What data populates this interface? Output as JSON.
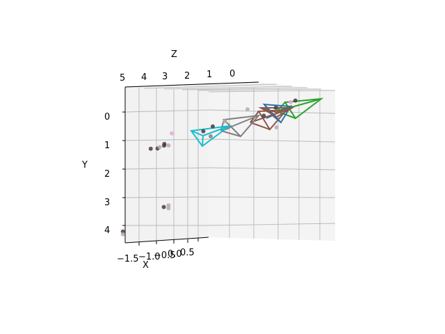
{
  "chart_data": {
    "type": "scatter",
    "projection": "3d",
    "title": "",
    "xlabel": "X",
    "ylabel": "Y",
    "zlabel": "Z",
    "grid": true,
    "axes": {
      "x": {
        "ticks": [
          "−1.5",
          "−1.0",
          "−0.5",
          "0.0",
          "0.5"
        ]
      },
      "y": {
        "ticks": [
          "0",
          "1",
          "2",
          "3",
          "4"
        ]
      },
      "z": {
        "ticks": [
          "5",
          "4",
          "3",
          "2",
          "1",
          "0"
        ]
      }
    },
    "colors": {
      "pane": "#f2f2f2",
      "grid": "#b0b0b0",
      "points_dark": "#4a3b3f",
      "points_pink": "#e7a9d6",
      "points_grey": "#b7a9b0",
      "camera_blue": "#1f77b4",
      "camera_green": "#2ca02c",
      "camera_brown": "#8c564b",
      "camera_grey": "#7f7f7f",
      "camera_cyan": "#17becf"
    },
    "cameras": [
      {
        "name": "camera-green",
        "color": "#2ca02c"
      },
      {
        "name": "camera-blue",
        "color": "#1f77b4"
      },
      {
        "name": "camera-brown-1",
        "color": "#8c564b"
      },
      {
        "name": "camera-brown-2",
        "color": "#8c564b"
      },
      {
        "name": "camera-grey",
        "color": "#7f7f7f"
      },
      {
        "name": "camera-cyan",
        "color": "#17becf"
      }
    ],
    "points": [
      {
        "x": -1.3,
        "y": 4.1,
        "z": 4.9,
        "color": "#4a3b3f"
      },
      {
        "x": -1.3,
        "y": 4.2,
        "z": 4.9,
        "color": "#b7a9b0"
      },
      {
        "x": -0.1,
        "y": 3.3,
        "z": 4.3,
        "color": "#4a3b3f"
      },
      {
        "x": 0.0,
        "y": 3.25,
        "z": 4.2,
        "color": "#b7a9b0"
      },
      {
        "x": 0.0,
        "y": 3.35,
        "z": 4.2,
        "color": "#b7a9b0"
      },
      {
        "x": -0.6,
        "y": 1.25,
        "z": 4.4,
        "color": "#4a3b3f"
      },
      {
        "x": -0.4,
        "y": 1.25,
        "z": 4.3,
        "color": "#4a3b3f"
      },
      {
        "x": -0.2,
        "y": 1.1,
        "z": 4.2,
        "color": "#4a3b3f"
      },
      {
        "x": -0.15,
        "y": 1.15,
        "z": 4.25,
        "color": "#4a3b3f"
      },
      {
        "x": 0.0,
        "y": 1.15,
        "z": 4.2,
        "color": "#b7a9b0"
      },
      {
        "x": -0.3,
        "y": 1.2,
        "z": 4.3,
        "color": "#b7a9b0"
      },
      {
        "x": -0.1,
        "y": 0.75,
        "z": 4.0,
        "color": "#e7a9d6"
      },
      {
        "x": 0.4,
        "y": 0.75,
        "z": 3.2,
        "color": "#4a3b3f"
      },
      {
        "x": 0.6,
        "y": 0.6,
        "z": 3.0,
        "color": "#4a3b3f"
      },
      {
        "x": 0.5,
        "y": 0.95,
        "z": 3.0,
        "color": "#7f7f7f"
      },
      {
        "x": 0.8,
        "y": 0.45,
        "z": 2.7,
        "color": "#b7a9b0"
      },
      {
        "x": 1.0,
        "y": 0.1,
        "z": 2.0,
        "color": "#b7a9b0"
      },
      {
        "x": 1.4,
        "y": 0.35,
        "z": 1.7,
        "color": "#4a3b3f"
      },
      {
        "x": 1.6,
        "y": 0.1,
        "z": 1.4,
        "color": "#4a3b3f"
      },
      {
        "x": 1.8,
        "y": -0.05,
        "z": 1.0,
        "color": "#e7a9d6"
      },
      {
        "x": 1.9,
        "y": -0.1,
        "z": 0.9,
        "color": "#4a3b3f"
      },
      {
        "x": 1.5,
        "y": 0.8,
        "z": 1.3,
        "color": "#b7a9b0"
      }
    ]
  }
}
